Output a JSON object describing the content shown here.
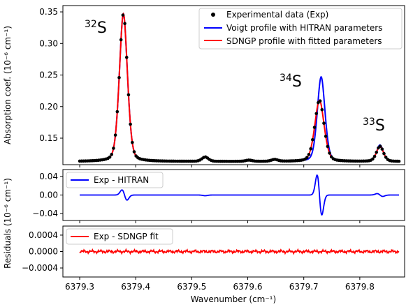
{
  "figure": {
    "xlabel": "Wavenumber (cm⁻¹)",
    "ylabel_top": "Absorption coef. (10⁻⁶ cm⁻¹)",
    "ylabel_bottom": "Residuals (10⁻⁶ cm⁻¹)",
    "colors": {
      "experimental": "#000000",
      "voigt": "#0000ff",
      "sdngp": "#ff0000",
      "marker_fill": "#000000"
    }
  },
  "chart_data": [
    {
      "type": "line",
      "panel": "spectrum",
      "xlabel": "",
      "ylabel": "Absorption coef. (10⁻⁶ cm⁻¹)",
      "xlim": [
        6379.27,
        6379.88
      ],
      "ylim": [
        0.108,
        0.36
      ],
      "yticks": [
        0.15,
        0.2,
        0.25,
        0.3,
        0.35
      ],
      "ytick_labels": [
        "0.15",
        "0.20",
        "0.25",
        "0.30",
        "0.35"
      ],
      "xticks": [
        6379.3,
        6379.4,
        6379.5,
        6379.6,
        6379.7,
        6379.8
      ],
      "legend_position": "top-right",
      "grid": false,
      "baseline": 0.113,
      "peaks": [
        {
          "label": "32S",
          "label_mass": "32",
          "label_elem": "S",
          "center": 6379.378,
          "height": 0.347,
          "width": 0.0075
        },
        {
          "label": "34S",
          "label_mass": "34",
          "label_elem": "S",
          "center": 6379.728,
          "height_voigt": 0.247,
          "height_sdngp": 0.21,
          "width": 0.0075
        },
        {
          "label": "33S",
          "label_mass": "33",
          "label_elem": "S",
          "center": 6379.836,
          "height": 0.137,
          "width": 0.0065
        }
      ],
      "minor_features": [
        {
          "center": 6379.524,
          "height": 0.12
        },
        {
          "center": 6379.648,
          "height": 0.116
        },
        {
          "center": 6379.602,
          "height": 0.115
        }
      ],
      "series": [
        {
          "name": "Experimental data (Exp)",
          "style": "markers"
        },
        {
          "name": "Voigt profile with HITRAN parameters",
          "style": "line",
          "color": "#0000ff"
        },
        {
          "name": "SDNGP profile with fitted parameters",
          "style": "line",
          "color": "#ff0000"
        }
      ]
    },
    {
      "type": "line",
      "panel": "residual-hitran",
      "xlim": [
        6379.27,
        6379.88
      ],
      "ylim": [
        -0.055,
        0.055
      ],
      "yticks": [
        -0.04,
        0.0,
        0.04
      ],
      "ytick_labels": [
        "−0.04",
        "0.00",
        "0.04"
      ],
      "legend_position": "top-left",
      "series": [
        {
          "name": "Exp - HITRAN",
          "color": "#0000ff"
        }
      ],
      "features": [
        {
          "center": 6379.38,
          "amplitude": 0.011,
          "kind": "derivative"
        },
        {
          "center": 6379.728,
          "amplitude": 0.043,
          "kind": "derivative"
        },
        {
          "center": 6379.836,
          "amplitude": 0.003,
          "kind": "derivative"
        }
      ]
    },
    {
      "type": "line",
      "panel": "residual-sdngp",
      "xlim": [
        6379.27,
        6379.88
      ],
      "ylim": [
        -0.00062,
        0.00062
      ],
      "yticks": [
        -0.0004,
        0.0,
        0.0004
      ],
      "ytick_labels": [
        "−0.0004",
        "0.0000",
        "0.0004"
      ],
      "xticks": [
        6379.3,
        6379.4,
        6379.5,
        6379.6,
        6379.7,
        6379.8
      ],
      "xtick_labels": [
        "6379.3",
        "6379.4",
        "6379.5",
        "6379.6",
        "6379.7",
        "6379.8"
      ],
      "legend_position": "top-left",
      "series": [
        {
          "name": "Exp - SDNGP fit",
          "color": "#ff0000"
        }
      ],
      "noise_amplitude": 3e-05
    }
  ]
}
